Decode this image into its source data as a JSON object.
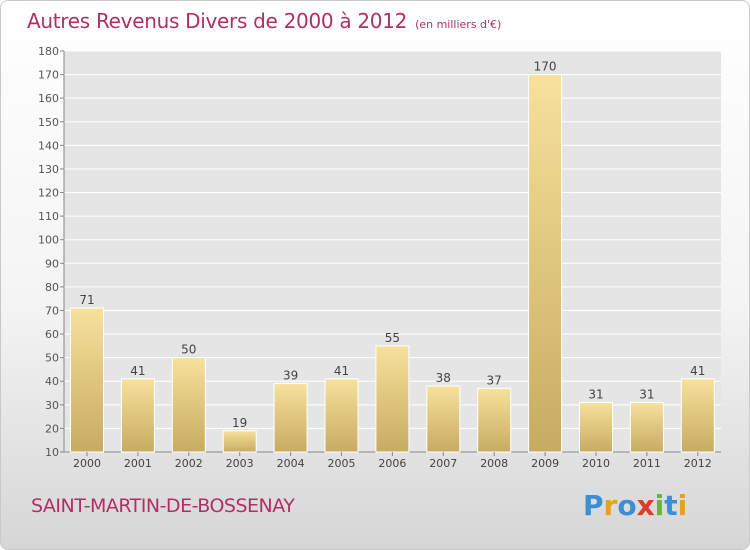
{
  "title": {
    "main": "Autres Revenus Divers de 2000 à 2012",
    "unit": "(en milliers d'€)"
  },
  "commune": "SAINT-MARTIN-DE-BOSSENAY",
  "brand": {
    "name": "Proxiti",
    "letters": [
      {
        "ch": "P",
        "color": "#3a8fd6"
      },
      {
        "ch": "r",
        "color": "#e8a020"
      },
      {
        "ch": "o",
        "color": "#3a8fd6"
      },
      {
        "ch": "x",
        "color": "#e03c2c"
      },
      {
        "ch": "i",
        "color": "#6cb33a"
      },
      {
        "ch": "t",
        "color": "#3a8fd6"
      },
      {
        "ch": "i",
        "color": "#e8a020"
      }
    ]
  },
  "colors": {
    "title": "#b03066",
    "bar_light": "#f6df98",
    "bar_dark": "#c9ad64",
    "grid": "#ffffff"
  },
  "chart_data": {
    "type": "bar",
    "categories": [
      "2000",
      "2001",
      "2002",
      "2003",
      "2004",
      "2005",
      "2006",
      "2007",
      "2008",
      "2009",
      "2010",
      "2011",
      "2012"
    ],
    "values": [
      71,
      41,
      50,
      19,
      39,
      41,
      55,
      38,
      37,
      170,
      31,
      31,
      41
    ],
    "yticks": [
      10,
      20,
      30,
      40,
      50,
      60,
      70,
      80,
      90,
      100,
      110,
      120,
      130,
      140,
      150,
      160,
      170,
      180
    ],
    "ylim": [
      10,
      180
    ],
    "grid": true,
    "data_labels": true
  }
}
